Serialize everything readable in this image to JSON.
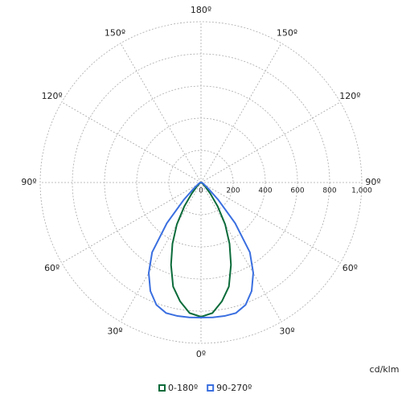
{
  "chart_data": {
    "type": "polar",
    "unit": "cd/klm",
    "rlim": [
      0,
      1000
    ],
    "rticks": [
      0,
      200,
      400,
      600,
      800,
      {
        "value": 1000,
        "label": "1,000"
      }
    ],
    "thetaticks": [
      {
        "value": 0,
        "label": "0º"
      },
      {
        "value": 30,
        "label": "30º"
      },
      {
        "value": 60,
        "label": "60º"
      },
      {
        "value": 90,
        "label": "90º"
      },
      {
        "value": 120,
        "label": "120º"
      },
      {
        "value": 150,
        "label": "150º"
      },
      {
        "value": 180,
        "label": "180º"
      }
    ],
    "theta": [
      0,
      5,
      10,
      15,
      20,
      25,
      30,
      35,
      40,
      45,
      50,
      55,
      60,
      65,
      70,
      75,
      80,
      85,
      90
    ],
    "grid": true,
    "series": [
      {
        "name": "0-180º",
        "color": "#0b6b3a",
        "values": [
          835,
          815,
          750,
          670,
          545,
          420,
          300,
          180,
          90,
          40,
          20,
          12,
          8,
          5,
          4,
          3,
          2,
          1,
          0
        ]
      },
      {
        "name": "90-270º",
        "color": "#3a6fe0",
        "values": [
          840,
          842,
          843,
          840,
          810,
          745,
          650,
          530,
          330,
          150,
          60,
          30,
          20,
          15,
          10,
          8,
          5,
          3,
          0
        ]
      }
    ]
  }
}
